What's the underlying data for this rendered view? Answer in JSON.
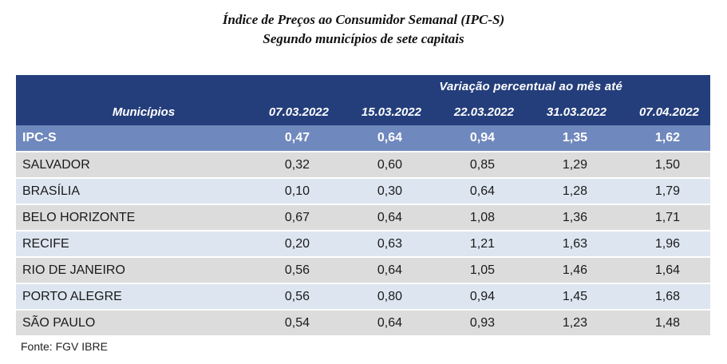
{
  "title": "Índice de Preços ao Consumidor Semanal (IPC-S)",
  "subtitle": "Segundo municípios de sete capitais",
  "table": {
    "group_header": "Variação percentual ao mês até",
    "name_header": "Municípios",
    "columns": [
      "07.03.2022",
      "15.03.2022",
      "22.03.2022",
      "31.03.2022",
      "07.04.2022"
    ],
    "highlight_row": {
      "name": "IPC-S",
      "values": [
        "0,47",
        "0,64",
        "0,94",
        "1,35",
        "1,62"
      ]
    },
    "rows": [
      {
        "name": "SALVADOR",
        "values": [
          "0,32",
          "0,60",
          "0,85",
          "1,29",
          "1,50"
        ]
      },
      {
        "name": "BRASÍLIA",
        "values": [
          "0,10",
          "0,30",
          "0,64",
          "1,28",
          "1,79"
        ]
      },
      {
        "name": "BELO HORIZONTE",
        "values": [
          "0,67",
          "0,64",
          "1,08",
          "1,36",
          "1,71"
        ]
      },
      {
        "name": "RECIFE",
        "values": [
          "0,20",
          "0,63",
          "1,21",
          "1,63",
          "1,96"
        ]
      },
      {
        "name": "RIO DE JANEIRO",
        "values": [
          "0,56",
          "0,64",
          "1,05",
          "1,46",
          "1,64"
        ]
      },
      {
        "name": "PORTO ALEGRE",
        "values": [
          "0,56",
          "0,80",
          "0,94",
          "1,45",
          "1,68"
        ]
      },
      {
        "name": "SÃO PAULO",
        "values": [
          "0,54",
          "0,64",
          "0,93",
          "1,23",
          "1,48"
        ]
      }
    ]
  },
  "source": "Fonte: FGV IBRE"
}
